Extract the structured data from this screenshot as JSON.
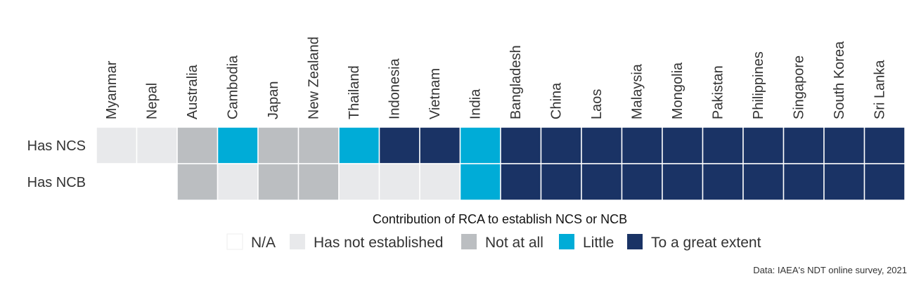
{
  "chart_data": {
    "type": "heatmap",
    "columns": [
      "Myanmar",
      "Nepal",
      "Australia",
      "Cambodia",
      "Japan",
      "New Zealand",
      "Thailand",
      "Indonesia",
      "Vietnam",
      "India",
      "Bangladesh",
      "China",
      "Laos",
      "Malaysia",
      "Mongolia",
      "Pakistan",
      "Philippines",
      "Singapore",
      "South Korea",
      "Sri Lanka"
    ],
    "rows": [
      "Has NCS",
      "Has NCB"
    ],
    "values": [
      [
        "Has not established",
        "Has not established",
        "Not at all",
        "Little",
        "Not at all",
        "Not at all",
        "Little",
        "To a great extent",
        "To a great extent",
        "Little",
        "To a great extent",
        "To a great extent",
        "To a great extent",
        "To a great extent",
        "To a great extent",
        "To a great extent",
        "To a great extent",
        "To a great extent",
        "To a great extent",
        "To a great extent"
      ],
      [
        "N/A",
        "N/A",
        "Not at all",
        "Has not established",
        "Not at all",
        "Not at all",
        "Has not established",
        "Has not established",
        "Has not established",
        "Little",
        "To a great extent",
        "To a great extent",
        "To a great extent",
        "To a great extent",
        "To a great extent",
        "To a great extent",
        "To a great extent",
        "To a great extent",
        "To a great extent",
        "To a great extent"
      ]
    ],
    "legend_title": "Contribution of RCA to establish NCS or NCB",
    "categories": [
      {
        "name": "N/A",
        "color": "#ffffff"
      },
      {
        "name": "Has not established",
        "color": "#e8e9eb"
      },
      {
        "name": "Not at all",
        "color": "#bbbec1"
      },
      {
        "name": "Little",
        "color": "#00acd7"
      },
      {
        "name": "To a great extent",
        "color": "#1a3365"
      }
    ],
    "legend_position": "bottom",
    "source": "Data: IAEA's NDT online survey, 2021"
  }
}
